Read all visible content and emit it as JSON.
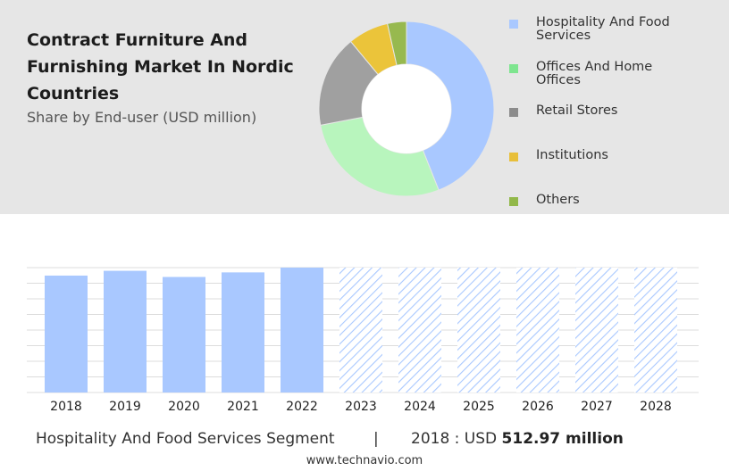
{
  "title": "Contract Furniture And Furnishing Market In Nordic Countries",
  "subtitle": "Share by End-user (USD million)",
  "legend": [
    {
      "label": "Hospitality And Food Services",
      "color": "#a9c8ff"
    },
    {
      "label": "Offices And Home Offices",
      "color": "#7ee58f"
    },
    {
      "label": "Retail Stores",
      "color": "#8c8c8c"
    },
    {
      "label": "Institutions",
      "color": "#e8bf3a"
    },
    {
      "label": "Others",
      "color": "#92b84a"
    }
  ],
  "chart_data": [
    {
      "type": "pie",
      "donut": true,
      "slices": [
        {
          "label": "Hospitality And Food Services",
          "value": 44,
          "color": "#a9c8ff"
        },
        {
          "label": "Offices And Home Offices",
          "value": 28,
          "color": "#b8f5bd"
        },
        {
          "label": "Retail Stores",
          "value": 17,
          "color": "#a0a0a0"
        },
        {
          "label": "Institutions",
          "value": 7.5,
          "color": "#ebc43a"
        },
        {
          "label": "Others",
          "value": 3.5,
          "color": "#97b94f"
        }
      ]
    },
    {
      "type": "bar",
      "categories": [
        "2018",
        "2019",
        "2020",
        "2021",
        "2022",
        "2023",
        "2024",
        "2025",
        "2026",
        "2027",
        "2028"
      ],
      "values": [
        512.97,
        534,
        507,
        527,
        548,
        null,
        null,
        null,
        null,
        null,
        null
      ],
      "forecast": [
        false,
        false,
        false,
        false,
        false,
        true,
        true,
        true,
        true,
        true,
        true
      ],
      "ylim": [
        0,
        548
      ],
      "grid": true,
      "bar_color": "#a9c8ff",
      "forecast_color": "#a9c8ff"
    }
  ],
  "footer": {
    "segment": "Hospitality And Food Services Segment",
    "separator": "|",
    "year_label": "2018 : USD",
    "value": "512.97 million"
  },
  "source": "www.technavio.com"
}
